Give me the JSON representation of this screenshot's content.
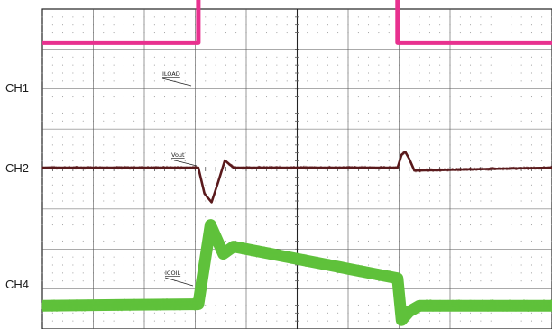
{
  "chart_data": {
    "type": "line",
    "title": "",
    "xlabel": "",
    "ylabel": "",
    "grid": true,
    "divisions": {
      "x": 10,
      "y": 8
    },
    "channels": [
      {
        "id": "ch1",
        "label": "CH1",
        "probe": "ILOAD",
        "color": "#e8318f"
      },
      {
        "id": "ch2",
        "label": "CH2",
        "probe": "Vout",
        "color": "#5a1a1c"
      },
      {
        "id": "ch4",
        "label": "CH4",
        "probe": "ICOIL",
        "color": "#5fc13b"
      }
    ],
    "series": [
      {
        "name": "ILOAD",
        "x": [
          0,
          3.06,
          3.06,
          6.97,
          6.97,
          10
        ],
        "y": [
          1.55,
          1.55,
          4.35,
          3.45,
          1.55,
          1.55
        ]
      },
      {
        "name": "Vout",
        "x": [
          0,
          3.06,
          3.18,
          3.32,
          3.45,
          3.58,
          3.75,
          6.97,
          7.05,
          7.12,
          7.2,
          7.3,
          10
        ],
        "y": [
          0,
          0,
          -0.9,
          -1.2,
          -0.5,
          0.25,
          0,
          0,
          0.45,
          0.55,
          0.3,
          -0.1,
          0
        ]
      },
      {
        "name": "ICOIL",
        "x": [
          0,
          2.9,
          3.06,
          3.3,
          3.55,
          3.75,
          6.97,
          7.05,
          7.2,
          7.4,
          10
        ],
        "y": [
          -0.6,
          -0.55,
          -0.55,
          2.2,
          1.2,
          1.45,
          0.35,
          -1.1,
          -0.8,
          -0.6,
          -0.6
        ]
      }
    ]
  }
}
